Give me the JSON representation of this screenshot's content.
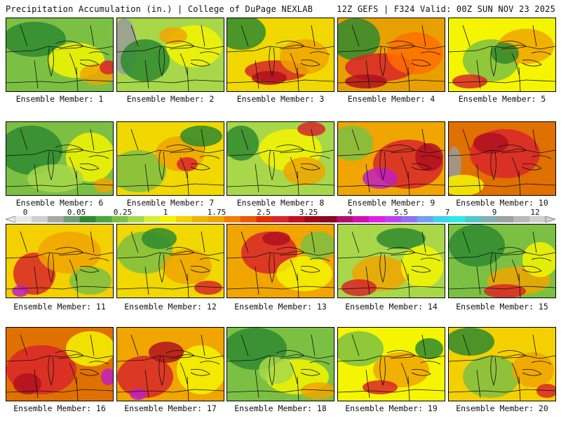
{
  "header": {
    "title_left": "Precipitation Accumulation (in.) | College of DuPage NEXLAB",
    "title_right": "12Z GEFS | F324 Valid: 00Z SUN NOV 23 2025"
  },
  "panels": [
    {
      "label": "Ensemble Member: 1",
      "base": "#7cc043",
      "blobs": [
        [
          "#2f8a2f",
          40,
          30,
          45,
          25
        ],
        [
          "#f5f500",
          100,
          60,
          40,
          25
        ],
        [
          "#f0a500",
          130,
          80,
          25,
          15
        ],
        [
          "#d8262a",
          145,
          70,
          12,
          10
        ]
      ]
    },
    {
      "label": "Ensemble Member: 2",
      "base": "#a8d84a",
      "blobs": [
        [
          "#9a9a9a",
          10,
          40,
          18,
          40
        ],
        [
          "#2f8a2f",
          40,
          60,
          35,
          30
        ],
        [
          "#f5f500",
          110,
          40,
          40,
          30
        ],
        [
          "#f0a500",
          80,
          25,
          20,
          12
        ]
      ]
    },
    {
      "label": "Ensemble Member: 3",
      "base": "#f0d800",
      "blobs": [
        [
          "#2f8a2f",
          20,
          20,
          35,
          25
        ],
        [
          "#d8262a",
          70,
          75,
          45,
          15
        ],
        [
          "#f0a500",
          110,
          55,
          35,
          25
        ],
        [
          "#b01020",
          60,
          85,
          25,
          10
        ]
      ]
    },
    {
      "label": "Ensemble Member: 4",
      "base": "#e8a000",
      "blobs": [
        [
          "#2f8a2f",
          25,
          30,
          35,
          30
        ],
        [
          "#d8262a",
          60,
          70,
          50,
          20
        ],
        [
          "#ff6f00",
          110,
          50,
          40,
          30
        ],
        [
          "#b01020",
          40,
          90,
          30,
          10
        ]
      ]
    },
    {
      "label": "Ensemble Member: 5",
      "base": "#f5f500",
      "blobs": [
        [
          "#7cc043",
          60,
          60,
          40,
          30
        ],
        [
          "#f0a500",
          110,
          40,
          40,
          25
        ],
        [
          "#d8262a",
          30,
          90,
          25,
          10
        ],
        [
          "#2f8a2f",
          80,
          50,
          20,
          15
        ]
      ]
    },
    {
      "label": "Ensemble Member: 6",
      "base": "#7cc043",
      "blobs": [
        [
          "#2f8a2f",
          35,
          40,
          45,
          35
        ],
        [
          "#f5f500",
          120,
          50,
          35,
          35
        ],
        [
          "#a8d84a",
          70,
          80,
          40,
          20
        ],
        [
          "#f0a500",
          140,
          90,
          15,
          10
        ]
      ]
    },
    {
      "label": "Ensemble Member: 7",
      "base": "#f0d800",
      "blobs": [
        [
          "#7cc043",
          30,
          70,
          40,
          30
        ],
        [
          "#f0a500",
          90,
          45,
          35,
          25
        ],
        [
          "#2f8a2f",
          120,
          20,
          30,
          15
        ],
        [
          "#d8262a",
          100,
          60,
          15,
          10
        ]
      ]
    },
    {
      "label": "Ensemble Member: 8",
      "base": "#a8d84a",
      "blobs": [
        [
          "#f5f500",
          90,
          40,
          45,
          30
        ],
        [
          "#2f8a2f",
          20,
          30,
          25,
          25
        ],
        [
          "#f0a500",
          110,
          70,
          30,
          20
        ],
        [
          "#d8262a",
          120,
          10,
          20,
          10
        ]
      ]
    },
    {
      "label": "Ensemble Member: 9",
      "base": "#f0a500",
      "blobs": [
        [
          "#d8262a",
          100,
          60,
          50,
          35
        ],
        [
          "#c020c0",
          60,
          80,
          25,
          15
        ],
        [
          "#7cc043",
          20,
          30,
          30,
          25
        ],
        [
          "#b01020",
          130,
          50,
          20,
          20
        ]
      ]
    },
    {
      "label": "Ensemble Member: 10",
      "base": "#e07000",
      "blobs": [
        [
          "#d8262a",
          80,
          45,
          50,
          35
        ],
        [
          "#9a9a9a",
          8,
          60,
          10,
          25
        ],
        [
          "#b01020",
          60,
          30,
          25,
          15
        ],
        [
          "#f5f500",
          20,
          90,
          30,
          15
        ]
      ]
    },
    {
      "label": "Ensemble Member: 11",
      "base": "#f5d000",
      "blobs": [
        [
          "#d8262a",
          40,
          70,
          30,
          30
        ],
        [
          "#f0a500",
          90,
          40,
          45,
          30
        ],
        [
          "#7cc043",
          120,
          80,
          30,
          20
        ],
        [
          "#c020c0",
          20,
          95,
          12,
          8
        ]
      ]
    },
    {
      "label": "Ensemble Member: 12",
      "base": "#f0d800",
      "blobs": [
        [
          "#7cc043",
          40,
          40,
          40,
          30
        ],
        [
          "#f0a500",
          100,
          60,
          35,
          25
        ],
        [
          "#2f8a2f",
          60,
          20,
          25,
          15
        ],
        [
          "#d8262a",
          130,
          90,
          20,
          10
        ]
      ]
    },
    {
      "label": "Ensemble Member: 13",
      "base": "#f0a500",
      "blobs": [
        [
          "#d8262a",
          60,
          40,
          40,
          30
        ],
        [
          "#f5f500",
          110,
          70,
          40,
          25
        ],
        [
          "#7cc043",
          130,
          30,
          25,
          20
        ],
        [
          "#b01020",
          70,
          20,
          20,
          10
        ]
      ]
    },
    {
      "label": "Ensemble Member: 14",
      "base": "#a8d84a",
      "blobs": [
        [
          "#f0a500",
          60,
          70,
          40,
          25
        ],
        [
          "#2f8a2f",
          90,
          20,
          35,
          15
        ],
        [
          "#f5f500",
          120,
          60,
          30,
          30
        ],
        [
          "#d8262a",
          30,
          90,
          25,
          12
        ]
      ]
    },
    {
      "label": "Ensemble Member: 15",
      "base": "#7cc043",
      "blobs": [
        [
          "#2f8a2f",
          40,
          30,
          40,
          30
        ],
        [
          "#f0a500",
          100,
          80,
          45,
          20
        ],
        [
          "#d8262a",
          80,
          95,
          30,
          10
        ],
        [
          "#f5f500",
          130,
          50,
          25,
          25
        ]
      ]
    },
    {
      "label": "Ensemble Member: 16",
      "base": "#e07000",
      "blobs": [
        [
          "#d8262a",
          50,
          60,
          50,
          35
        ],
        [
          "#f5f500",
          120,
          30,
          35,
          25
        ],
        [
          "#b01020",
          30,
          80,
          20,
          15
        ],
        [
          "#c020c0",
          145,
          70,
          10,
          12
        ]
      ]
    },
    {
      "label": "Ensemble Member: 17",
      "base": "#f0a500",
      "blobs": [
        [
          "#d8262a",
          40,
          70,
          40,
          30
        ],
        [
          "#f5f500",
          120,
          60,
          35,
          35
        ],
        [
          "#b01020",
          70,
          35,
          25,
          15
        ],
        [
          "#c020c0",
          30,
          95,
          12,
          8
        ]
      ]
    },
    {
      "label": "Ensemble Member: 18",
      "base": "#7cc043",
      "blobs": [
        [
          "#2f8a2f",
          40,
          30,
          45,
          30
        ],
        [
          "#f5f500",
          100,
          70,
          45,
          25
        ],
        [
          "#f0a500",
          130,
          90,
          25,
          12
        ],
        [
          "#a8d84a",
          70,
          60,
          25,
          20
        ]
      ]
    },
    {
      "label": "Ensemble Member: 19",
      "base": "#f5f500",
      "blobs": [
        [
          "#7cc043",
          30,
          30,
          35,
          25
        ],
        [
          "#f0a500",
          90,
          60,
          40,
          25
        ],
        [
          "#d8262a",
          60,
          85,
          25,
          10
        ],
        [
          "#2f8a2f",
          130,
          30,
          20,
          15
        ]
      ]
    },
    {
      "label": "Ensemble Member: 20",
      "base": "#f5d000",
      "blobs": [
        [
          "#2f8a2f",
          30,
          20,
          35,
          20
        ],
        [
          "#7cc043",
          60,
          70,
          40,
          30
        ],
        [
          "#f0a500",
          120,
          60,
          30,
          25
        ],
        [
          "#d8262a",
          140,
          90,
          15,
          10
        ]
      ]
    }
  ],
  "colorbar": {
    "ticks": [
      "0",
      "0.05",
      "0.25",
      "1",
      "1.75",
      "2.5",
      "3.25",
      "4",
      "5.5",
      "7",
      "9",
      "12"
    ],
    "colors": [
      "#e8e8e8",
      "#cfcfcf",
      "#a8a8a8",
      "#6fa06f",
      "#2f8a2f",
      "#4aa83a",
      "#7cc043",
      "#a8d84a",
      "#d8ec38",
      "#f5f500",
      "#f5d000",
      "#f0b400",
      "#f0a500",
      "#f08000",
      "#e85a00",
      "#e03000",
      "#d8262a",
      "#c01020",
      "#a00818",
      "#8a0820",
      "#b0106e",
      "#d010b0",
      "#e020e0",
      "#c040f0",
      "#9070f0",
      "#70a0f0",
      "#40d0f0",
      "#30e8e8",
      "#50c8c8",
      "#80b0b0",
      "#a0a0a0",
      "#b8b8b8",
      "#d0d0d0"
    ]
  }
}
